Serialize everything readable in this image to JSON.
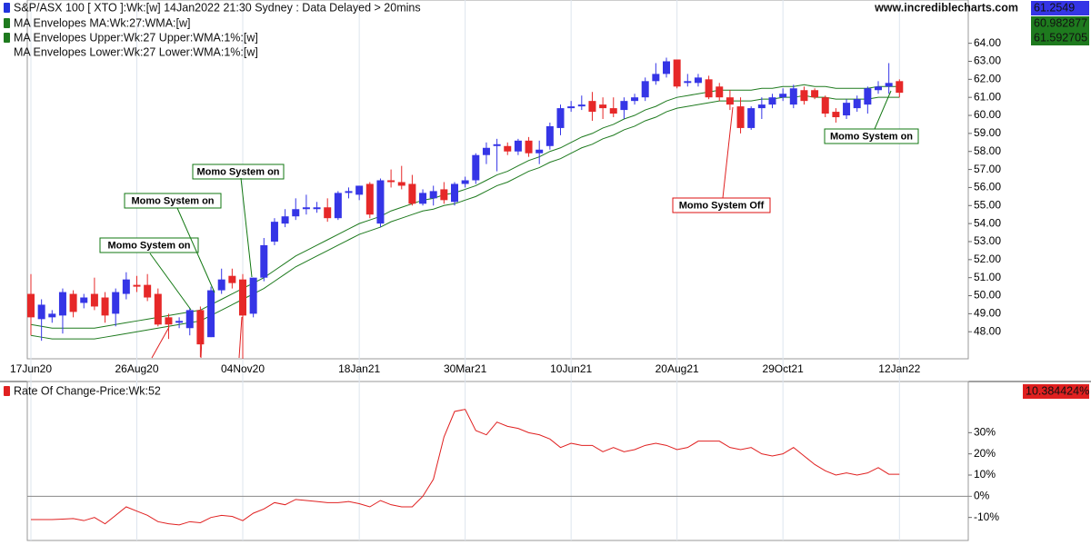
{
  "chart_data": [
    {
      "type": "candlestick",
      "title": "S&P/ASX 100 [ XTO ]:Wk:[w]  14Jan2022 21:30 Sydney : Data Delayed > 20mins",
      "title_color": "#2233dd",
      "source": "www.incrediblecharts.com",
      "last_value": 61.2549,
      "categories": [
        "17Jun20",
        null,
        null,
        null,
        null,
        null,
        null,
        null,
        null,
        null,
        "26Aug20",
        null,
        null,
        null,
        null,
        null,
        null,
        null,
        null,
        null,
        "04Nov20",
        null,
        null,
        null,
        null,
        null,
        null,
        null,
        null,
        null,
        null,
        "18Jan21",
        null,
        null,
        null,
        null,
        null,
        null,
        null,
        null,
        null,
        "30Mar21",
        null,
        null,
        null,
        null,
        null,
        null,
        null,
        null,
        null,
        "10Jun21",
        null,
        null,
        null,
        null,
        null,
        null,
        null,
        null,
        null,
        "20Aug21",
        null,
        null,
        null,
        null,
        null,
        null,
        null,
        null,
        null,
        "29Oct21",
        null,
        null,
        null,
        null,
        null,
        null,
        null,
        null,
        null,
        null,
        "12Jan22"
      ],
      "open": [
        50.1,
        48.7,
        48.8,
        48.9,
        50.1,
        49.6,
        50.1,
        49.9,
        49.0,
        50.1,
        50.6,
        50.6,
        50.1,
        48.8,
        48.5,
        48.2,
        49.2,
        47.7,
        50.3,
        51.1,
        50.9,
        49.0,
        51.0,
        53.0,
        54.0,
        54.4,
        54.8,
        54.8,
        54.9,
        54.3,
        55.7,
        55.6,
        56.2,
        54.0,
        56.4,
        56.3,
        56.2,
        55.1,
        55.4,
        55.9,
        55.2,
        56.2,
        56.4,
        57.8,
        58.3,
        58.3,
        58.0,
        58.6,
        57.9,
        58.3,
        59.3,
        60.4,
        60.5,
        60.8,
        60.6,
        60.4,
        60.3,
        60.8,
        61.0,
        61.9,
        62.3,
        63.1,
        61.8,
        61.8,
        62.0,
        61.6,
        61.0,
        60.5,
        59.3,
        60.4,
        60.6,
        61.0,
        60.6,
        61.4,
        61.4,
        61.0,
        60.2,
        60.0,
        60.4,
        60.6,
        61.4,
        61.6,
        61.9
      ],
      "high": [
        51.2,
        49.8,
        49.2,
        50.4,
        50.3,
        50.1,
        51.0,
        50.2,
        50.4,
        51.3,
        51.1,
        51.2,
        50.4,
        49.0,
        48.8,
        49.3,
        49.4,
        50.5,
        51.5,
        51.5,
        51.2,
        51.0,
        53.2,
        54.3,
        54.8,
        55.4,
        55.6,
        55.2,
        55.4,
        55.8,
        56.0,
        56.1,
        56.3,
        56.5,
        57.0,
        57.2,
        56.7,
        55.9,
        56.1,
        56.3,
        56.3,
        56.6,
        57.9,
        58.5,
        58.7,
        58.5,
        58.7,
        58.8,
        58.6,
        59.6,
        60.6,
        60.8,
        61.1,
        61.3,
        61.0,
        61.0,
        61.0,
        61.2,
        62.1,
        62.9,
        63.2,
        63.1,
        62.3,
        62.3,
        62.2,
        61.8,
        61.4,
        61.0,
        60.5,
        61.0,
        61.2,
        61.5,
        61.7,
        61.6,
        61.5,
        61.1,
        60.4,
        60.9,
        61.1,
        61.6,
        61.9,
        62.9,
        62.0
      ],
      "low": [
        47.8,
        47.5,
        48.5,
        47.9,
        48.8,
        49.3,
        49.2,
        48.5,
        48.3,
        49.8,
        50.2,
        49.7,
        48.3,
        47.6,
        48.2,
        47.8,
        46.6,
        47.7,
        50.1,
        50.4,
        46.5,
        48.8,
        50.8,
        52.8,
        53.8,
        54.2,
        54.5,
        54.6,
        54.1,
        54.2,
        55.4,
        55.3,
        54.3,
        53.8,
        56.0,
        55.9,
        55.0,
        55.0,
        55.0,
        55.1,
        55.0,
        56.0,
        56.2,
        57.3,
        56.9,
        57.8,
        57.8,
        57.7,
        57.3,
        58.1,
        58.9,
        60.2,
        60.3,
        59.7,
        59.8,
        59.9,
        59.8,
        60.6,
        60.8,
        61.7,
        62.1,
        61.5,
        61.6,
        61.6,
        60.9,
        60.8,
        60.3,
        59.0,
        59.2,
        59.8,
        60.4,
        60.8,
        60.4,
        60.6,
        60.9,
        59.9,
        59.6,
        59.8,
        60.2,
        60.1,
        61.2,
        61.2,
        61.0
      ],
      "close": [
        48.8,
        49.5,
        49.0,
        50.2,
        49.1,
        49.9,
        49.4,
        48.9,
        50.2,
        50.9,
        50.5,
        49.9,
        48.4,
        48.4,
        48.6,
        49.2,
        47.3,
        50.3,
        50.9,
        50.7,
        48.9,
        51.0,
        52.8,
        54.1,
        54.4,
        54.8,
        54.9,
        54.9,
        54.3,
        55.7,
        55.8,
        56.1,
        54.5,
        56.4,
        56.3,
        56.1,
        55.1,
        55.7,
        55.8,
        55.3,
        56.2,
        56.4,
        57.8,
        58.2,
        58.4,
        58.0,
        58.6,
        57.9,
        58.1,
        59.4,
        60.4,
        60.5,
        60.6,
        60.2,
        60.4,
        60.1,
        60.8,
        61.0,
        61.9,
        62.3,
        63.0,
        61.6,
        61.9,
        62.1,
        61.0,
        61.0,
        60.6,
        59.3,
        60.4,
        60.6,
        61.0,
        61.2,
        61.5,
        60.8,
        61.0,
        60.1,
        59.9,
        60.7,
        60.9,
        61.5,
        61.6,
        61.8,
        61.2549
      ],
      "up_color": "#3535e6",
      "down_color": "#e62828",
      "series": [
        {
          "name": "MA Envelopes MA:Wk:27:WMA:[w]",
          "color": "#1e7a1e",
          "last_value": 60.982877,
          "drawn": false
        },
        {
          "name": "MA Envelopes Upper:Wk:27 Upper:WMA:1%:[w]",
          "color": "#1e7a1e",
          "last_value": 61.592705,
          "values": [
            48.4,
            48.3,
            48.2,
            48.2,
            48.2,
            48.2,
            48.2,
            48.3,
            48.4,
            48.5,
            48.6,
            48.7,
            48.8,
            48.9,
            49.0,
            49.1,
            49.2,
            49.5,
            49.8,
            50.1,
            50.4,
            50.7,
            51.0,
            51.4,
            51.8,
            52.2,
            52.5,
            52.8,
            53.1,
            53.4,
            53.7,
            54.0,
            54.2,
            54.4,
            54.7,
            54.9,
            55.1,
            55.3,
            55.4,
            55.6,
            55.7,
            55.9,
            56.1,
            56.4,
            56.7,
            56.9,
            57.2,
            57.5,
            57.7,
            58.0,
            58.2,
            58.5,
            58.8,
            59.0,
            59.3,
            59.5,
            59.8,
            60.0,
            60.3,
            60.5,
            60.8,
            61.0,
            61.1,
            61.2,
            61.3,
            61.4,
            61.4,
            61.4,
            61.4,
            61.5,
            61.5,
            61.6,
            61.6,
            61.7,
            61.6,
            61.6,
            61.5,
            61.5,
            61.5,
            61.5,
            61.6,
            61.6,
            61.6
          ]
        },
        {
          "name": "MA Envelopes Lower:Wk:27 Lower:WMA:1%:[w]",
          "color": "#1e7a1e",
          "values": [
            47.8,
            47.7,
            47.6,
            47.6,
            47.6,
            47.6,
            47.6,
            47.7,
            47.8,
            47.9,
            48.0,
            48.1,
            48.2,
            48.3,
            48.4,
            48.5,
            48.6,
            48.9,
            49.2,
            49.5,
            49.8,
            50.1,
            50.4,
            50.8,
            51.2,
            51.6,
            51.9,
            52.2,
            52.5,
            52.8,
            53.1,
            53.4,
            53.6,
            53.8,
            54.1,
            54.3,
            54.5,
            54.7,
            54.8,
            55.0,
            55.1,
            55.3,
            55.5,
            55.8,
            56.1,
            56.3,
            56.6,
            56.9,
            57.1,
            57.4,
            57.6,
            57.9,
            58.2,
            58.4,
            58.7,
            58.9,
            59.2,
            59.4,
            59.7,
            59.9,
            60.2,
            60.4,
            60.5,
            60.6,
            60.7,
            60.8,
            60.8,
            60.8,
            60.8,
            60.9,
            60.9,
            61.0,
            61.0,
            61.1,
            61.0,
            61.0,
            60.9,
            60.9,
            60.9,
            60.9,
            61.0,
            61.0,
            61.0
          ]
        }
      ],
      "ylim": [
        46.5,
        66.4
      ],
      "yticks": [
        {
          "value": 48,
          "label": "48.00"
        },
        {
          "value": 49,
          "label": "49.00"
        },
        {
          "value": 50,
          "label": "50.00"
        },
        {
          "value": 51,
          "label": "51.00"
        },
        {
          "value": 52,
          "label": "52.00"
        },
        {
          "value": 53,
          "label": "53.00"
        },
        {
          "value": 54,
          "label": "54.00"
        },
        {
          "value": 55,
          "label": "55.00"
        },
        {
          "value": 56,
          "label": "56.00"
        },
        {
          "value": 57,
          "label": "57.00"
        },
        {
          "value": 58,
          "label": "58.00"
        },
        {
          "value": 59,
          "label": "59.00"
        },
        {
          "value": 60,
          "label": "60.00"
        },
        {
          "value": 61,
          "label": "61.00"
        },
        {
          "value": 62,
          "label": "62.00"
        },
        {
          "value": 63,
          "label": "63.00"
        },
        {
          "value": 64,
          "label": "64.00"
        }
      ],
      "annotations": [
        {
          "text": "Momo System on",
          "color": "#117711"
        },
        {
          "text": "Momo System on",
          "color": "#117711"
        },
        {
          "text": "Momo System on",
          "color": "#117711"
        },
        {
          "text": "Momo System Off",
          "color": "#dd1111"
        },
        {
          "text": "Momo System on",
          "color": "#117711"
        }
      ]
    },
    {
      "type": "line",
      "title": "Rate Of Change-Price:Wk:52",
      "color": "#e02020",
      "last_value": 10.384424,
      "last_value_label": "10.384424%",
      "values": [
        -11,
        -11,
        -11,
        -10.8,
        -10.5,
        -11.5,
        -10,
        -13,
        -9,
        -5,
        -7,
        -9,
        -12,
        -13,
        -13.5,
        -12,
        -12.5,
        -10,
        -9,
        -9.5,
        -11.5,
        -8,
        -6,
        -3,
        -4,
        -1.5,
        -2,
        -2.5,
        -3,
        -3,
        -2.5,
        -3.5,
        -5,
        -2,
        -4,
        -5,
        -5,
        0,
        8,
        28,
        40,
        41,
        31,
        29,
        35,
        33,
        32,
        30,
        29,
        27,
        23,
        25,
        24,
        24,
        21,
        23,
        21,
        22,
        24,
        25,
        24,
        22,
        23,
        26,
        26,
        26,
        23,
        22,
        23,
        20,
        19,
        20,
        23,
        19,
        15,
        12,
        10,
        11,
        10,
        11,
        13.5,
        10.4,
        10.384424
      ],
      "ylim": [
        -20,
        52
      ],
      "yticks": [
        {
          "value": -10,
          "label": "-10%"
        },
        {
          "value": 0,
          "label": "0%"
        },
        {
          "value": 10,
          "label": "10%"
        },
        {
          "value": 20,
          "label": "20%"
        },
        {
          "value": 30,
          "label": "30%"
        }
      ]
    }
  ]
}
